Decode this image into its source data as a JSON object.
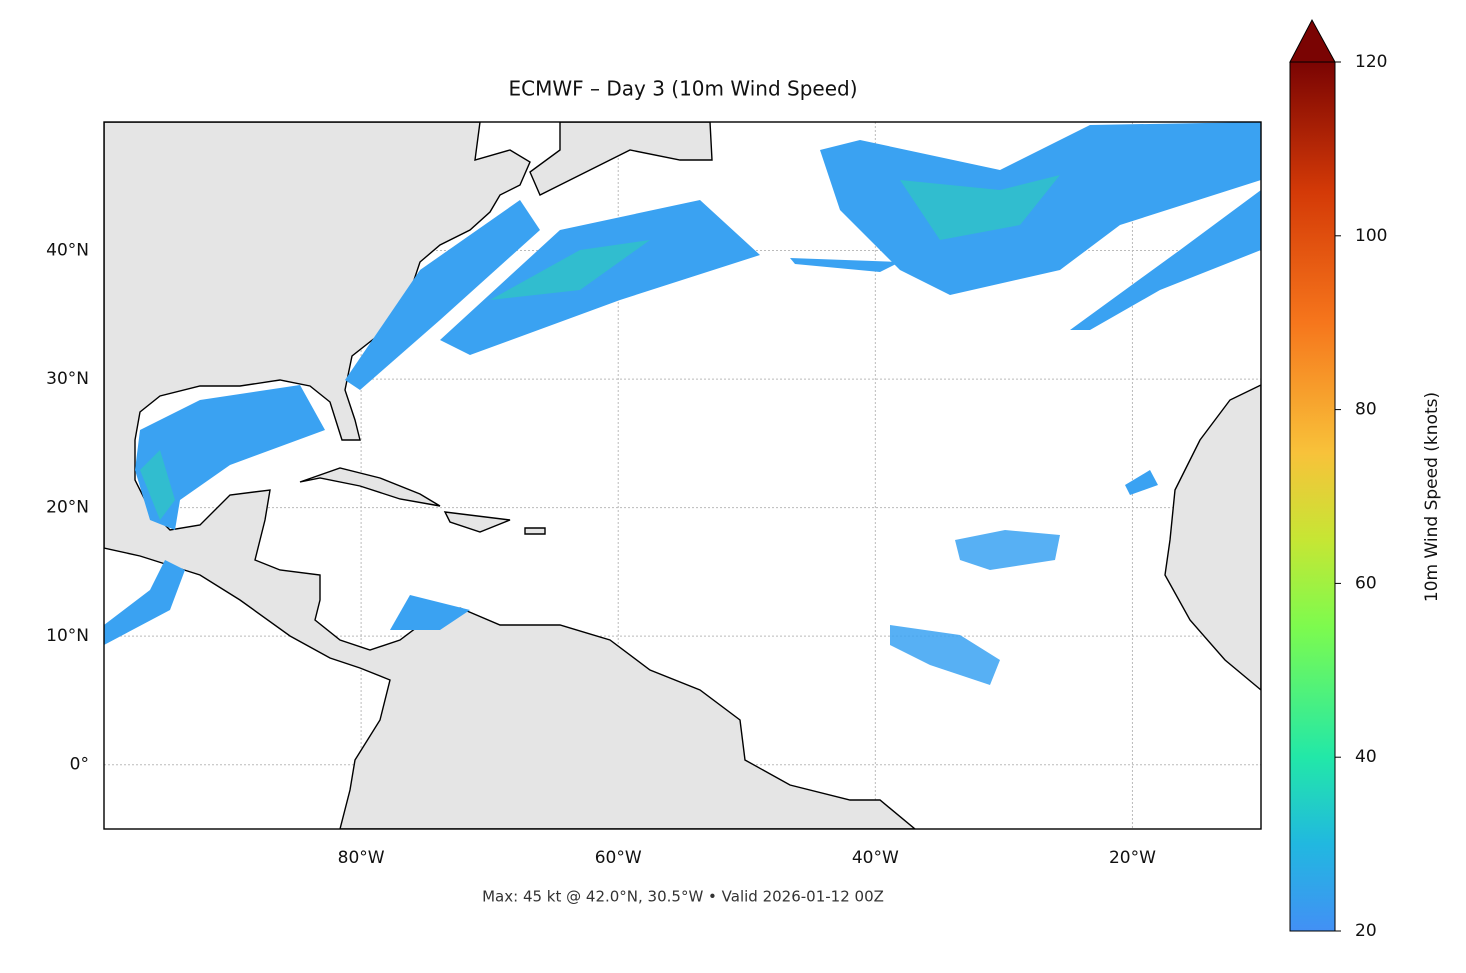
{
  "chart_data": {
    "type": "map",
    "title": "ECMWF – Day 3 (10m Wind Speed)",
    "subtitle": "Max: 45 kt @ 42.0°N, 30.5°W • Valid 2026-01-12 00Z",
    "xlim": [
      -100,
      -10
    ],
    "ylim": [
      -5,
      50
    ],
    "xticks": [
      {
        "value": -80,
        "label": "80°W"
      },
      {
        "value": -60,
        "label": "60°W"
      },
      {
        "value": -40,
        "label": "40°W"
      },
      {
        "value": -20,
        "label": "20°W"
      }
    ],
    "yticks": [
      {
        "value": 0,
        "label": "0°"
      },
      {
        "value": 10,
        "label": "10°N"
      },
      {
        "value": 20,
        "label": "20°N"
      },
      {
        "value": 30,
        "label": "30°N"
      },
      {
        "value": 40,
        "label": "40°N"
      }
    ],
    "grid": true,
    "colorbar": {
      "label": "10m Wind Speed (knots)",
      "lim": [
        20,
        120
      ],
      "ticks": [
        20,
        40,
        60,
        80,
        100,
        120
      ]
    }
  }
}
